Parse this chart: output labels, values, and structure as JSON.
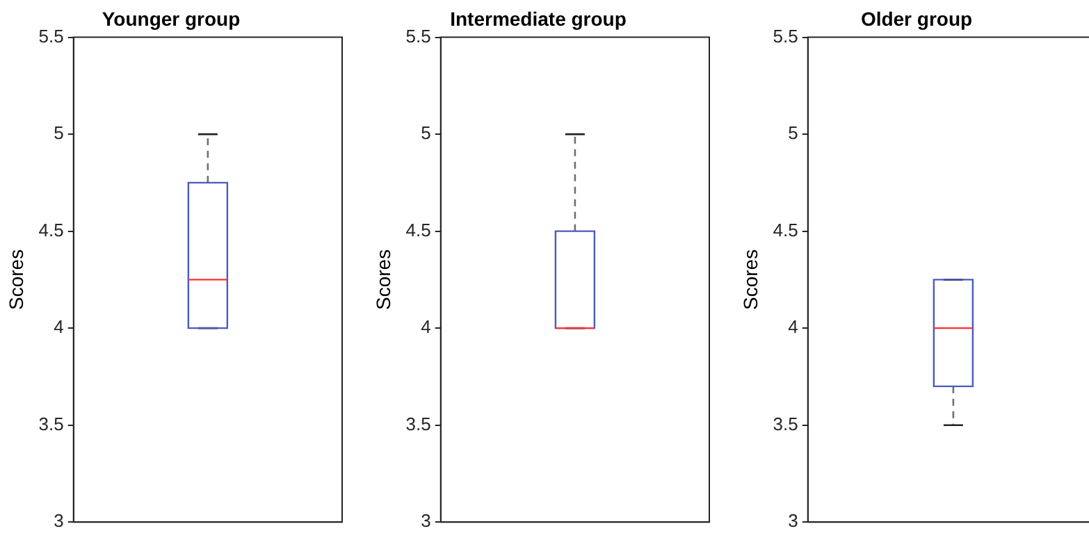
{
  "chart_data": [
    {
      "type": "box",
      "title": "Younger group",
      "ylabel": "Scores",
      "categories": [
        null
      ],
      "ylim": [
        3,
        5.5
      ],
      "yticks": [
        3,
        3.5,
        4,
        4.5,
        5,
        5.5
      ],
      "grid": false,
      "legend": false,
      "color": "#4a5ac0",
      "boxes": [
        {
          "low": 4,
          "q1": 4,
          "median": 4.25,
          "q3": 4.75,
          "high": 5
        }
      ]
    },
    {
      "type": "box",
      "title": "Intermediate group",
      "ylabel": "Scores",
      "categories": [
        null
      ],
      "ylim": [
        3,
        5.5
      ],
      "yticks": [
        3,
        3.5,
        4,
        4.5,
        5,
        5.5
      ],
      "grid": false,
      "legend": false,
      "color": "#4a5ac0",
      "boxes": [
        {
          "low": 4,
          "q1": 4,
          "median": 4,
          "q3": 4.5,
          "high": 5
        }
      ]
    },
    {
      "type": "box",
      "title": "Older group",
      "ylabel": "Scores",
      "categories": [
        null
      ],
      "ylim": [
        3,
        5.5
      ],
      "yticks": [
        3,
        3.5,
        4,
        4.5,
        5,
        5.5
      ],
      "grid": false,
      "legend": false,
      "color": "#4a5ac0",
      "boxes": [
        {
          "low": 3.5,
          "q1": 3.7,
          "median": 4,
          "q3": 4.25,
          "high": 4.25
        }
      ]
    }
  ]
}
